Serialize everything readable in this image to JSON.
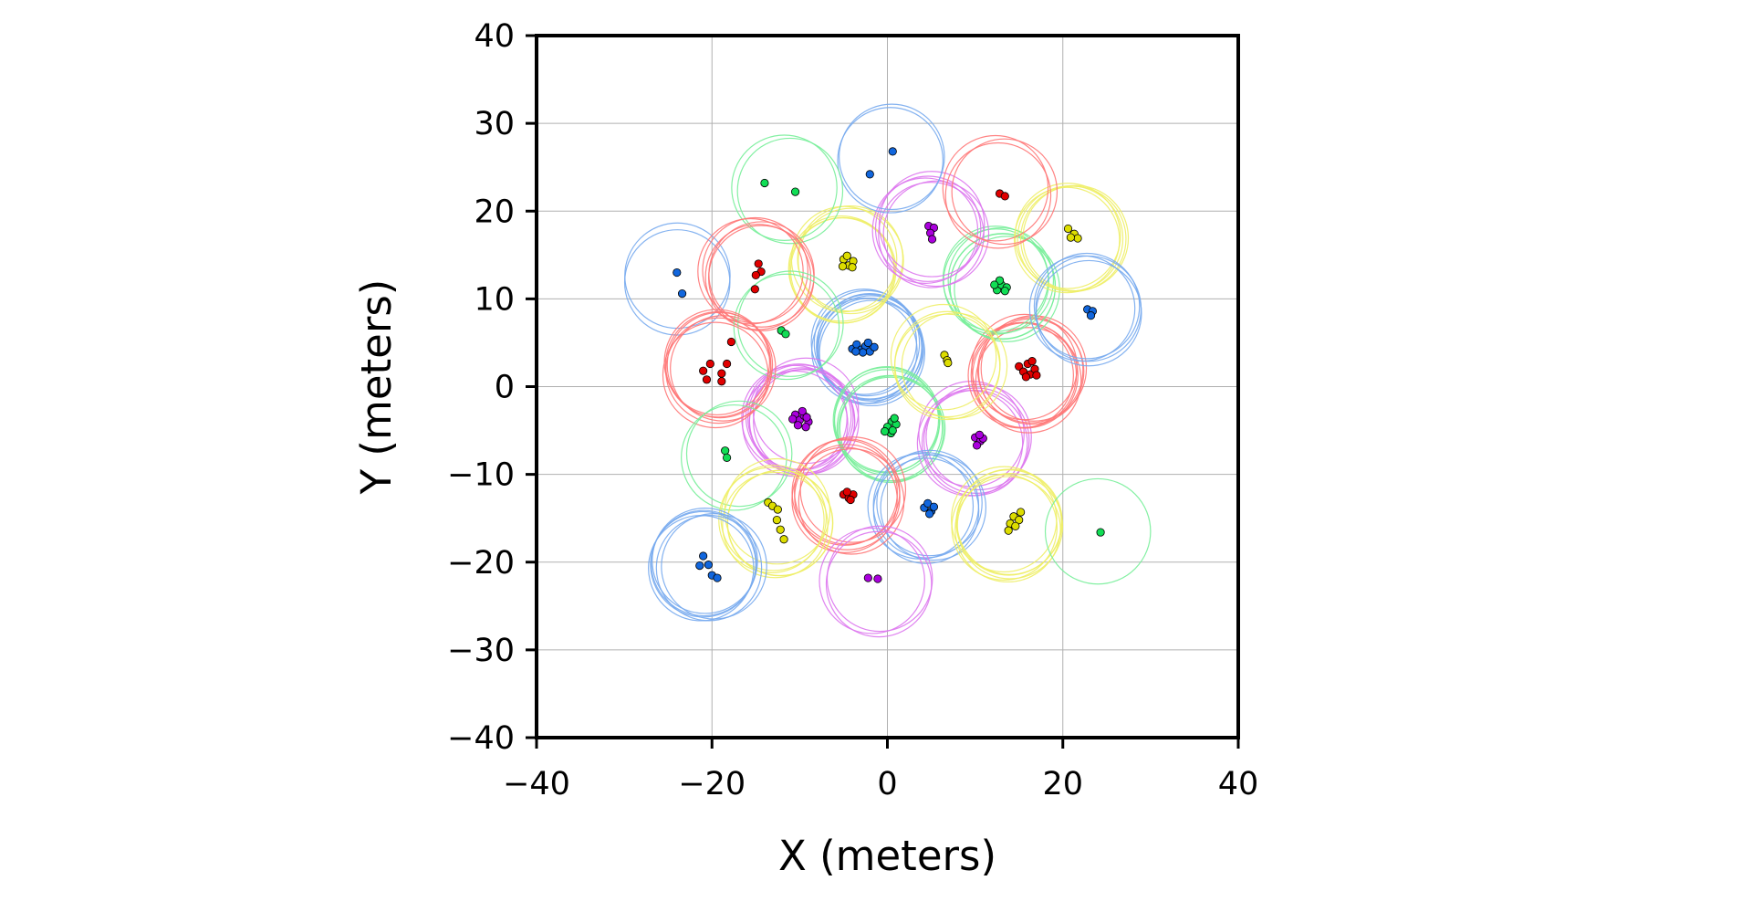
{
  "chart_data": {
    "type": "scatter",
    "title": "",
    "xlabel": "X (meters)",
    "ylabel": "Y (meters)",
    "xlim": [
      -40,
      40
    ],
    "ylim": [
      -40,
      40
    ],
    "xticks": [
      -40,
      -20,
      0,
      20,
      40
    ],
    "yticks": [
      -40,
      -30,
      -20,
      -10,
      0,
      10,
      20,
      30,
      40
    ],
    "xtick_labels": [
      "−40",
      "−20",
      "0",
      "20",
      "40"
    ],
    "ytick_labels": [
      "−40",
      "−30",
      "−20",
      "−10",
      "0",
      "10",
      "20",
      "30",
      "40"
    ],
    "grid": true,
    "circle_radius": 6,
    "colors": {
      "red": "#e00000",
      "blue": "#1166dd",
      "green": "#11dd55",
      "yellow": "#dddd00",
      "purple": "#aa00dd"
    },
    "circle_colors": {
      "red": "#ff7777",
      "blue": "#77aaee",
      "green": "#77ee99",
      "yellow": "#eeee66",
      "purple": "#dd77ee"
    },
    "groups": [
      {
        "color": "blue",
        "center": [
          -2,
          4.5
        ],
        "circle_count": 8,
        "points": [
          [
            -4,
            4.3
          ],
          [
            -3.5,
            4.8
          ],
          [
            -3,
            4.2
          ],
          [
            -2.5,
            4.6
          ],
          [
            -2,
            4.0
          ],
          [
            -1.5,
            4.5
          ],
          [
            -2.8,
            3.9
          ],
          [
            -3.6,
            4.0
          ],
          [
            -2.2,
            5.0
          ]
        ]
      },
      {
        "color": "purple",
        "center": [
          -10,
          -3.5
        ],
        "circle_count": 8,
        "points": [
          [
            -10.5,
            -3.2
          ],
          [
            -10,
            -3.8
          ],
          [
            -9.5,
            -3.3
          ],
          [
            -9,
            -4.0
          ],
          [
            -10.2,
            -4.4
          ],
          [
            -9.3,
            -4.6
          ],
          [
            -10.8,
            -3.7
          ],
          [
            -9.7,
            -2.8
          ],
          [
            -9.2,
            -3.5
          ]
        ]
      },
      {
        "color": "green",
        "center": [
          0.5,
          -4.5
        ],
        "circle_count": 6,
        "points": [
          [
            0.5,
            -4.0
          ],
          [
            0,
            -4.6
          ],
          [
            1,
            -4.3
          ],
          [
            0.4,
            -5.3
          ],
          [
            -0.3,
            -5.1
          ],
          [
            0.8,
            -3.6
          ],
          [
            0.6,
            -5.0
          ]
        ]
      },
      {
        "color": "purple",
        "center": [
          10,
          -6
        ],
        "circle_count": 5,
        "points": [
          [
            10,
            -5.8
          ],
          [
            10.6,
            -6.2
          ],
          [
            10.2,
            -6.7
          ],
          [
            10.9,
            -5.9
          ],
          [
            10.5,
            -5.5
          ]
        ]
      },
      {
        "color": "blue",
        "center": [
          4.5,
          -13.5
        ],
        "circle_count": 5,
        "points": [
          [
            4.2,
            -13.8
          ],
          [
            5,
            -14.2
          ],
          [
            4.6,
            -13.3
          ],
          [
            5.3,
            -13.7
          ],
          [
            4.8,
            -14.5
          ]
        ]
      },
      {
        "color": "red",
        "center": [
          -4.5,
          -12.5
        ],
        "circle_count": 6,
        "points": [
          [
            -5,
            -12.3
          ],
          [
            -4.4,
            -12.7
          ],
          [
            -3.9,
            -12.3
          ],
          [
            -4.6,
            -12.0
          ],
          [
            -4.2,
            -12.9
          ]
        ]
      },
      {
        "color": "red",
        "center": [
          16,
          1.5
        ],
        "circle_count": 8,
        "points": [
          [
            15,
            2.3
          ],
          [
            15.5,
            1.7
          ],
          [
            16,
            2.6
          ],
          [
            16.3,
            1.4
          ],
          [
            16.8,
            2.0
          ],
          [
            17,
            1.3
          ],
          [
            15.8,
            1.1
          ],
          [
            16.5,
            2.9
          ]
        ]
      },
      {
        "color": "green",
        "center": [
          13,
          11.5
        ],
        "circle_count": 6,
        "points": [
          [
            12.5,
            11.0
          ],
          [
            13,
            11.6
          ],
          [
            13.6,
            11.3
          ],
          [
            12.8,
            12.1
          ],
          [
            13.4,
            10.9
          ],
          [
            12.2,
            11.6
          ]
        ]
      },
      {
        "color": "yellow",
        "center": [
          -4.5,
          14
        ],
        "circle_count": 6,
        "points": [
          [
            -5,
            14.5
          ],
          [
            -4.4,
            13.8
          ],
          [
            -3.9,
            14.3
          ],
          [
            -4.6,
            14.9
          ],
          [
            -4.0,
            13.6
          ],
          [
            -5.1,
            13.7
          ]
        ]
      },
      {
        "color": "purple",
        "center": [
          5,
          18
        ],
        "circle_count": 5,
        "points": [
          [
            4.7,
            18.3
          ],
          [
            5.3,
            18.1
          ],
          [
            4.9,
            17.5
          ],
          [
            5.1,
            16.8
          ]
        ]
      },
      {
        "color": "yellow",
        "center": [
          21,
          17.5
        ],
        "circle_count": 5,
        "points": [
          [
            20.6,
            18.0
          ],
          [
            21.3,
            17.4
          ],
          [
            21.7,
            16.9
          ],
          [
            20.9,
            17.0
          ]
        ]
      },
      {
        "color": "blue",
        "center": [
          23,
          8.5
        ],
        "circle_count": 4,
        "points": [
          [
            22.8,
            8.8
          ],
          [
            23.4,
            8.6
          ],
          [
            23.2,
            8.1
          ]
        ]
      },
      {
        "color": "red",
        "center": [
          13,
          22
        ],
        "circle_count": 3,
        "points": [
          [
            12.8,
            22.0
          ],
          [
            13.4,
            21.7
          ]
        ]
      },
      {
        "color": "blue",
        "center": [
          1,
          26.5
        ],
        "circle_count": 2,
        "points": [
          [
            0.6,
            26.8
          ],
          [
            -2.0,
            24.2
          ]
        ]
      },
      {
        "color": "green",
        "center": [
          -11,
          22.5
        ],
        "circle_count": 2,
        "points": [
          [
            -14.0,
            23.2
          ],
          [
            -10.5,
            22.2
          ]
        ]
      },
      {
        "color": "blue",
        "center": [
          -24,
          12
        ],
        "circle_count": 2,
        "points": [
          [
            -24.0,
            13.0
          ],
          [
            -23.4,
            10.6
          ]
        ]
      },
      {
        "color": "red",
        "center": [
          -15,
          12.5
        ],
        "circle_count": 5,
        "points": [
          [
            -14.7,
            14.0
          ],
          [
            -14.4,
            13.1
          ],
          [
            -15.0,
            12.7
          ],
          [
            -15.1,
            11.1
          ]
        ]
      },
      {
        "color": "green",
        "center": [
          -11.5,
          6.5
        ],
        "circle_count": 2,
        "points": [
          [
            -12.1,
            6.4
          ],
          [
            -11.6,
            6.0
          ]
        ]
      },
      {
        "color": "red",
        "center": [
          -19.5,
          2
        ],
        "circle_count": 6,
        "points": [
          [
            -17.8,
            5.1
          ],
          [
            -20.2,
            2.6
          ],
          [
            -18.3,
            2.6
          ],
          [
            -21.0,
            1.8
          ],
          [
            -18.9,
            1.5
          ],
          [
            -20.6,
            0.8
          ],
          [
            -18.9,
            0.6
          ]
        ]
      },
      {
        "color": "green",
        "center": [
          -17.5,
          -8
        ],
        "circle_count": 2,
        "points": [
          [
            -18.5,
            -7.3
          ],
          [
            -18.3,
            -8.1
          ]
        ]
      },
      {
        "color": "yellow",
        "center": [
          -12.5,
          -15
        ],
        "circle_count": 6,
        "points": [
          [
            -13.6,
            -13.2
          ],
          [
            -13.1,
            -13.6
          ],
          [
            -12.5,
            -14.0
          ],
          [
            -12.6,
            -15.2
          ],
          [
            -12.2,
            -16.3
          ],
          [
            -11.8,
            -17.4
          ]
        ]
      },
      {
        "color": "blue",
        "center": [
          -20.5,
          -20.5
        ],
        "circle_count": 6,
        "points": [
          [
            -21.0,
            -19.3
          ],
          [
            -21.4,
            -20.4
          ],
          [
            -20.4,
            -20.3
          ],
          [
            -20.0,
            -21.5
          ],
          [
            -19.4,
            -21.8
          ]
        ]
      },
      {
        "color": "purple",
        "center": [
          -1.5,
          -22
        ],
        "circle_count": 3,
        "points": [
          [
            -2.2,
            -21.8
          ],
          [
            -1.1,
            -21.9
          ]
        ]
      },
      {
        "color": "yellow",
        "center": [
          14,
          -15.5
        ],
        "circle_count": 6,
        "points": [
          [
            15.2,
            -14.3
          ],
          [
            14.4,
            -14.8
          ],
          [
            15.0,
            -15.2
          ],
          [
            14.0,
            -15.6
          ],
          [
            14.6,
            -15.9
          ],
          [
            13.8,
            -16.4
          ]
        ]
      },
      {
        "color": "green",
        "center": [
          24,
          -16.5
        ],
        "circle_count": 1,
        "points": [
          [
            24.3,
            -16.6
          ]
        ]
      },
      {
        "color": "yellow",
        "center": [
          7,
          3
        ],
        "circle_count": 4,
        "points": [
          [
            6.5,
            3.6
          ],
          [
            6.8,
            3.0
          ],
          [
            6.9,
            2.7
          ]
        ]
      }
    ]
  }
}
